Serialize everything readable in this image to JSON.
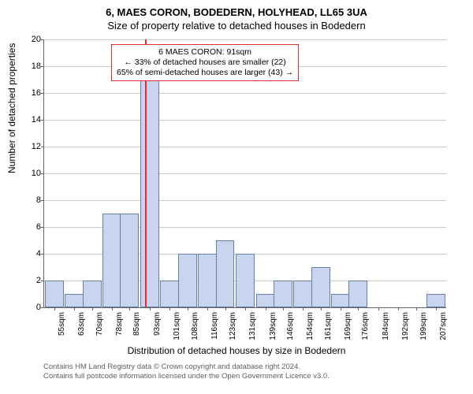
{
  "titles": {
    "line1": "6, MAES CORON, BODEDERN, HOLYHEAD, LL65 3UA",
    "line2": "Size of property relative to detached houses in Bodedern"
  },
  "chart": {
    "type": "histogram",
    "ylabel": "Number of detached properties",
    "xlabel": "Distribution of detached houses by size in Bodedern",
    "xlim": [
      51,
      211
    ],
    "ylim": [
      0,
      20
    ],
    "ytick_step": 2,
    "grid_color": "#cccccc",
    "axis_color": "#666666",
    "background_color": "#ffffff",
    "bar_fill": "#c9d4ee",
    "bar_edge": "#6a7fa8",
    "bar_width_units": 7.5,
    "marker_line": {
      "x": 91,
      "color": "#d93030"
    },
    "bars": [
      {
        "x": 55,
        "y": 2
      },
      {
        "x": 63,
        "y": 1
      },
      {
        "x": 70,
        "y": 2
      },
      {
        "x": 78,
        "y": 7
      },
      {
        "x": 85,
        "y": 7
      },
      {
        "x": 93,
        "y": 18
      },
      {
        "x": 101,
        "y": 2
      },
      {
        "x": 108,
        "y": 4
      },
      {
        "x": 116,
        "y": 4
      },
      {
        "x": 123,
        "y": 5
      },
      {
        "x": 131,
        "y": 4
      },
      {
        "x": 139,
        "y": 1
      },
      {
        "x": 146,
        "y": 2
      },
      {
        "x": 154,
        "y": 2
      },
      {
        "x": 161,
        "y": 3
      },
      {
        "x": 169,
        "y": 1
      },
      {
        "x": 176,
        "y": 2
      },
      {
        "x": 184,
        "y": 0
      },
      {
        "x": 192,
        "y": 0
      },
      {
        "x": 199,
        "y": 0
      },
      {
        "x": 207,
        "y": 1
      }
    ],
    "xticks": [
      "55sqm",
      "63sqm",
      "70sqm",
      "78sqm",
      "85sqm",
      "93sqm",
      "101sqm",
      "108sqm",
      "116sqm",
      "123sqm",
      "131sqm",
      "139sqm",
      "146sqm",
      "154sqm",
      "161sqm",
      "169sqm",
      "176sqm",
      "184sqm",
      "192sqm",
      "199sqm",
      "207sqm"
    ]
  },
  "annotation": {
    "line1": "6 MAES CORON: 91sqm",
    "line2": "← 33% of detached houses are smaller (22)",
    "line3": "65% of semi-detached houses are larger (43) →",
    "border_color": "#d93030",
    "fontsize": 10.5
  },
  "footer": {
    "line1": "Contains HM Land Registry data © Crown copyright and database right 2024.",
    "line2": "Contains full postcode information licensed under the Open Government Licence v3.0."
  }
}
